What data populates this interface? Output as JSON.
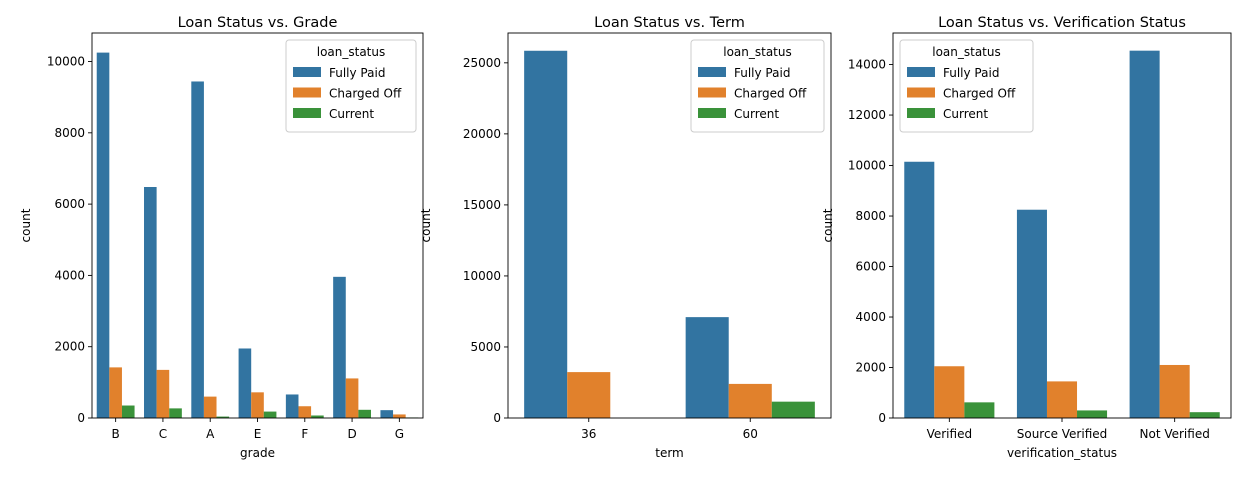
{
  "colors": {
    "Fully Paid": "#3274a1",
    "Charged Off": "#e1812c",
    "Current": "#3a923a"
  },
  "chart_data": [
    {
      "type": "bar",
      "title": "Loan Status vs. Grade",
      "xlabel": "grade",
      "ylabel": "count",
      "categories": [
        "B",
        "C",
        "A",
        "E",
        "F",
        "D",
        "G"
      ],
      "ylim": [
        0,
        10800
      ],
      "yticks": [
        0,
        2000,
        4000,
        6000,
        8000,
        10000
      ],
      "legend": {
        "title": "loan_status",
        "position": "top-right"
      },
      "series": [
        {
          "name": "Fully Paid",
          "values": [
            10250,
            6480,
            9440,
            1950,
            660,
            3960,
            220
          ]
        },
        {
          "name": "Charged Off",
          "values": [
            1420,
            1350,
            600,
            720,
            330,
            1110,
            100
          ]
        },
        {
          "name": "Current",
          "values": [
            350,
            270,
            40,
            180,
            70,
            230,
            15
          ]
        }
      ]
    },
    {
      "type": "bar",
      "title": "Loan Status vs. Term",
      "xlabel": "term",
      "ylabel": "count",
      "categories": [
        "36",
        "60"
      ],
      "ylim": [
        0,
        27100
      ],
      "yticks": [
        0,
        5000,
        10000,
        15000,
        20000,
        25000
      ],
      "legend": {
        "title": "loan_status",
        "position": "top-right"
      },
      "series": [
        {
          "name": "Fully Paid",
          "values": [
            25850,
            7100
          ]
        },
        {
          "name": "Charged Off",
          "values": [
            3230,
            2400
          ]
        },
        {
          "name": "Current",
          "values": [
            0,
            1150
          ]
        }
      ]
    },
    {
      "type": "bar",
      "title": "Loan Status vs. Verification Status",
      "xlabel": "verification_status",
      "ylabel": "count",
      "categories": [
        "Verified",
        "Source Verified",
        "Not Verified"
      ],
      "ylim": [
        0,
        15250
      ],
      "yticks": [
        0,
        2000,
        4000,
        6000,
        8000,
        10000,
        12000,
        14000
      ],
      "legend": {
        "title": "loan_status",
        "position": "top-left"
      },
      "series": [
        {
          "name": "Fully Paid",
          "values": [
            10150,
            8250,
            14550
          ]
        },
        {
          "name": "Charged Off",
          "values": [
            2050,
            1450,
            2100
          ]
        },
        {
          "name": "Current",
          "values": [
            620,
            300,
            230
          ]
        }
      ]
    }
  ]
}
